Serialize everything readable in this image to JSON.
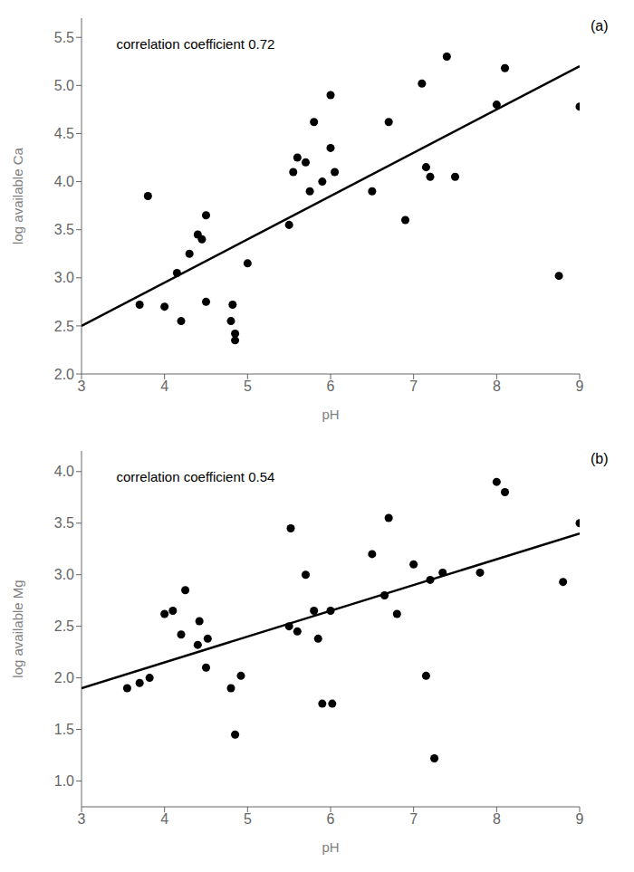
{
  "chart_data": [
    {
      "type": "scatter",
      "title": "(a)",
      "x_label": "pH",
      "y_label": "log available Ca",
      "annotations": [
        "correlation coefficient 0.72"
      ],
      "series": [
        {
          "type": "scatter",
          "color": "#000000",
          "x": [
            3.7,
            3.8,
            4.0,
            4.15,
            4.2,
            4.3,
            4.4,
            4.45,
            4.5,
            4.5,
            4.8,
            4.82,
            4.85,
            4.85,
            5.0,
            5.5,
            5.55,
            5.6,
            5.7,
            5.75,
            5.8,
            5.9,
            6.0,
            6.0,
            6.05,
            6.5,
            6.7,
            6.9,
            7.1,
            7.15,
            7.2,
            7.4,
            7.5,
            8.0,
            8.1,
            8.75,
            9.0
          ],
          "values": [
            2.72,
            3.85,
            2.7,
            3.05,
            2.55,
            3.25,
            3.45,
            3.4,
            2.75,
            3.65,
            2.55,
            2.72,
            2.35,
            2.42,
            3.15,
            3.55,
            4.1,
            4.25,
            4.2,
            3.9,
            4.62,
            4.0,
            4.35,
            4.9,
            4.1,
            3.9,
            4.62,
            3.6,
            5.02,
            4.15,
            4.05,
            5.3,
            4.05,
            4.8,
            5.18,
            3.02,
            4.78
          ]
        },
        {
          "type": "line",
          "color": "#000000",
          "x": [
            3.0,
            9.0
          ],
          "values": [
            2.5,
            5.2
          ]
        }
      ],
      "xlim": [
        3,
        9
      ],
      "xticks": [
        3,
        4,
        5,
        6,
        7,
        8,
        9
      ],
      "ylim": [
        2.0,
        5.7
      ],
      "yticks": [
        {
          "value": 2.0,
          "label": "2.0"
        },
        2.5,
        {
          "value": 3.0,
          "label": "3.0"
        },
        3.5,
        {
          "value": 4.0,
          "label": "4.0"
        },
        4.5,
        {
          "value": 5.0,
          "label": "5.0"
        },
        5.5
      ],
      "grid": false
    },
    {
      "type": "scatter",
      "title": "(b)",
      "x_label": "pH",
      "y_label": "log available Mg",
      "annotations": [
        "correlation coefficient 0.54"
      ],
      "series": [
        {
          "type": "scatter",
          "color": "#000000",
          "x": [
            3.55,
            3.7,
            3.82,
            4.0,
            4.1,
            4.2,
            4.25,
            4.4,
            4.42,
            4.5,
            4.52,
            4.8,
            4.85,
            4.92,
            5.5,
            5.52,
            5.6,
            5.7,
            5.8,
            5.85,
            5.9,
            6.0,
            6.02,
            6.5,
            6.65,
            6.7,
            6.8,
            7.0,
            7.15,
            7.2,
            7.25,
            7.35,
            7.8,
            8.0,
            8.1,
            8.8,
            9.0
          ],
          "values": [
            1.9,
            1.95,
            2.0,
            2.62,
            2.65,
            2.42,
            2.85,
            2.32,
            2.55,
            2.1,
            2.38,
            1.9,
            1.45,
            2.02,
            2.5,
            3.45,
            2.45,
            3.0,
            2.65,
            2.38,
            1.75,
            2.65,
            1.75,
            3.2,
            2.8,
            3.55,
            2.62,
            3.1,
            2.02,
            2.95,
            1.22,
            3.02,
            3.02,
            3.9,
            3.8,
            2.93,
            3.5
          ]
        },
        {
          "type": "line",
          "color": "#000000",
          "x": [
            3.0,
            9.0
          ],
          "values": [
            1.9,
            3.4
          ]
        }
      ],
      "xlim": [
        3,
        9
      ],
      "xticks": [
        3,
        4,
        5,
        6,
        7,
        8,
        9
      ],
      "ylim": [
        0.75,
        4.2
      ],
      "yticks": [
        {
          "value": 1.0,
          "label": "1.0"
        },
        1.5,
        {
          "value": 2.0,
          "label": "2.0"
        },
        2.5,
        {
          "value": 3.0,
          "label": "3.0"
        },
        3.5,
        {
          "value": 4.0,
          "label": "4.0"
        }
      ],
      "grid": false
    }
  ]
}
